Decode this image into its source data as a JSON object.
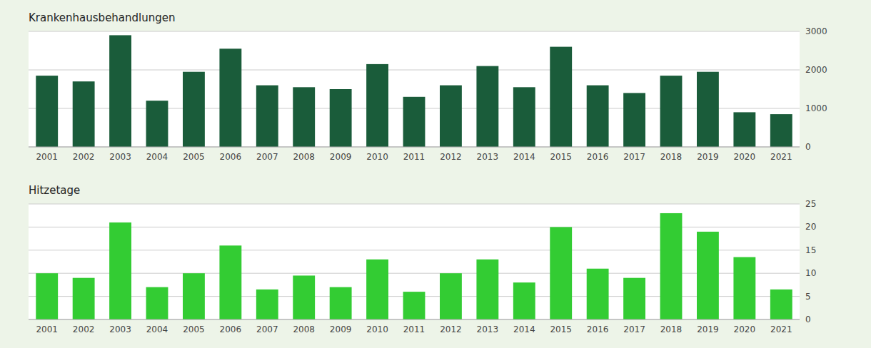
{
  "chart_data": [
    {
      "type": "bar",
      "title": "Krankenhausbehandlungen",
      "categories": [
        "2001",
        "2002",
        "2003",
        "2004",
        "2005",
        "2006",
        "2007",
        "2008",
        "2009",
        "2010",
        "2011",
        "2012",
        "2013",
        "2014",
        "2015",
        "2016",
        "2017",
        "2018",
        "2019",
        "2020",
        "2021"
      ],
      "values": [
        1850,
        1700,
        2900,
        1200,
        1950,
        2550,
        1600,
        1550,
        1500,
        2150,
        1300,
        1600,
        2100,
        1550,
        2600,
        1600,
        1400,
        1850,
        1950,
        900,
        850
      ],
      "color": "#1a5c3a",
      "ylim": [
        0,
        3000
      ],
      "yticks": [
        0,
        1000,
        2000,
        3000
      ],
      "grid": true
    },
    {
      "type": "bar",
      "title": "Hitzetage",
      "categories": [
        "2001",
        "2002",
        "2003",
        "2004",
        "2005",
        "2006",
        "2007",
        "2008",
        "2009",
        "2010",
        "2011",
        "2012",
        "2013",
        "2014",
        "2015",
        "2016",
        "2017",
        "2018",
        "2019",
        "2020",
        "2021"
      ],
      "values": [
        10,
        9,
        21,
        7,
        10,
        16,
        6.5,
        9.5,
        7,
        13,
        6,
        10,
        13,
        8,
        20,
        11,
        9,
        23,
        19,
        13.5,
        6.5
      ],
      "color": "#33cc33",
      "ylim": [
        0,
        25
      ],
      "yticks": [
        0,
        5,
        10,
        15,
        20,
        25
      ],
      "grid": true
    }
  ]
}
